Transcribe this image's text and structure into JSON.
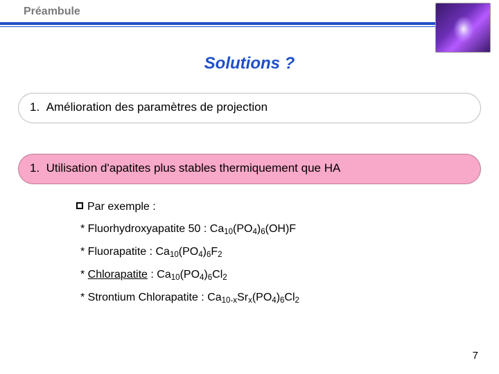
{
  "header": {
    "section": "Préambule"
  },
  "title": "Solutions ?",
  "box1": {
    "num": "1.",
    "text": "Amélioration des paramètres de projection"
  },
  "box2": {
    "num": "1.",
    "text": "Utilisation d'apatites plus stables thermiquement que HA"
  },
  "examples": {
    "lead": "Par exemple :",
    "items": [
      {
        "label": "Fluorhydroxyapatite 50 : ",
        "formula_html": "Ca<sub>10</sub>(PO<sub>4</sub>)<sub>6</sub>(OH)F",
        "underline": false
      },
      {
        "label": "Fluorapatite : ",
        "formula_html": "Ca<sub>10</sub>(PO<sub>4</sub>)<sub>6</sub>F<sub>2</sub>",
        "underline": false
      },
      {
        "label": "Chlorapatite",
        "formula_html": "Ca<sub>10</sub>(PO<sub>4</sub>)<sub>6</sub>Cl<sub>2</sub>",
        "underline": true,
        "sep": " : "
      },
      {
        "label": "Strontium Chlorapatite : ",
        "formula_html": "Ca<sub>10-x</sub>Sr<sub>x</sub>(PO<sub>4</sub>)<sub>6</sub>Cl<sub>2</sub>",
        "underline": false
      }
    ]
  },
  "page": "7",
  "colors": {
    "accent": "#2050c8",
    "pink": "#f8a8c8",
    "section_label": "#7a7a7a"
  }
}
